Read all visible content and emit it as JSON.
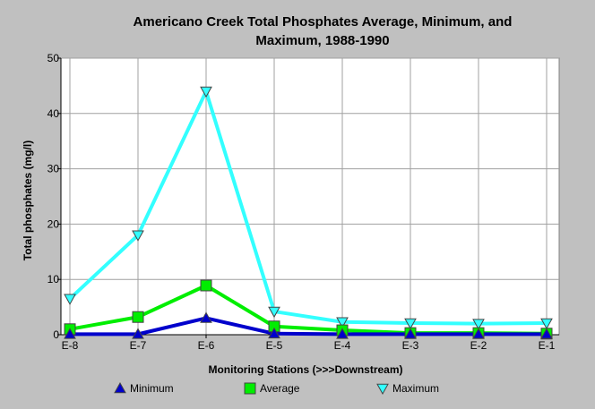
{
  "chart_data": {
    "type": "line",
    "title_line1": "Americano Creek Total Phosphates Average, Minimum, and",
    "title_line2": "Maximum, 1988-1990",
    "xlabel": "Monitoring Stations (>>>Downstream)",
    "ylabel": "Total phosphates (mg/l)",
    "categories": [
      "E-8",
      "E-7",
      "E-6",
      "E-5",
      "E-4",
      "E-3",
      "E-2",
      "E-1"
    ],
    "ylim": [
      0,
      50
    ],
    "yticks": [
      0,
      10,
      20,
      30,
      40,
      50
    ],
    "grid": true,
    "legend_position": "bottom",
    "series": [
      {
        "name": "Minimum",
        "values": [
          0.1,
          0.1,
          3.0,
          0.2,
          0.1,
          0.1,
          0.1,
          0.1
        ],
        "color": "#0000cc",
        "marker": "triangle-up"
      },
      {
        "name": "Average",
        "values": [
          1.0,
          3.2,
          8.9,
          1.5,
          0.8,
          0.3,
          0.3,
          0.2
        ],
        "color": "#00ee00",
        "marker": "square"
      },
      {
        "name": "Maximum",
        "values": [
          6.5,
          18.0,
          44.0,
          4.2,
          2.3,
          2.1,
          2.0,
          2.1
        ],
        "color": "#33ffff",
        "marker": "triangle-down"
      }
    ]
  },
  "colors": {
    "background": "#c0c0c0",
    "plot_background": "#ffffff",
    "grid": "#a0a0a0",
    "marker_outline": "#444444"
  }
}
